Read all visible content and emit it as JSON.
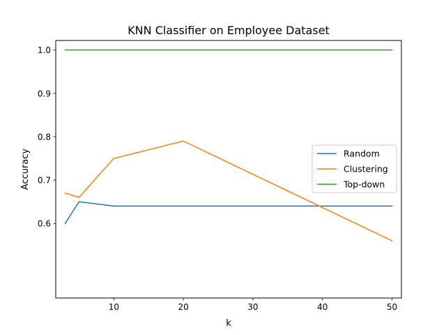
{
  "chart_data": {
    "type": "line",
    "title": "KNN Classifier on Employee Dataset",
    "xlabel": "k",
    "ylabel": "Accuracy",
    "xlim": [
      1.65,
      51.35
    ],
    "ylim": [
      0.428,
      1.022
    ],
    "xticks": [
      10,
      20,
      30,
      40,
      50
    ],
    "yticks": [
      0.6,
      0.7,
      0.8,
      0.9,
      1.0
    ],
    "xtick_labels": [
      "10",
      "20",
      "30",
      "40",
      "50"
    ],
    "ytick_labels": [
      "0.6",
      "0.7",
      "0.8",
      "0.9",
      "1.0"
    ],
    "x": [
      3,
      5,
      10,
      20,
      50
    ],
    "series": [
      {
        "name": "Random",
        "color": "#1f77b4",
        "values": [
          0.6,
          0.65,
          0.64,
          0.64,
          0.64
        ]
      },
      {
        "name": "Clustering",
        "color": "#ff7f0e",
        "values": [
          0.67,
          0.66,
          0.75,
          0.79,
          0.56
        ]
      },
      {
        "name": "Top-down",
        "color": "#2ca02c",
        "values": [
          1.0,
          1.0,
          1.0,
          1.0,
          1.0
        ]
      }
    ],
    "grid": false,
    "legend": "center-right"
  }
}
